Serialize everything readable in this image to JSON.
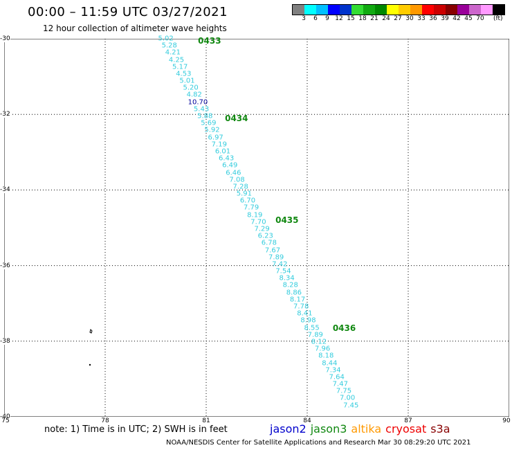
{
  "header": {
    "title": "00:00 – 11:59 UTC 03/27/2021",
    "subtitle": "12 hour collection of altimeter wave heights"
  },
  "legend": {
    "colors": [
      "#808080",
      "#00ffff",
      "#00bfff",
      "#0000ff",
      "#0033cc",
      "#33dd33",
      "#11aa11",
      "#008800",
      "#ffff00",
      "#ffcc00",
      "#ff9900",
      "#ff0000",
      "#cc0000",
      "#880000",
      "#990099",
      "#cc66cc",
      "#ff99ff",
      "#000000"
    ],
    "labels": [
      "3",
      "6",
      "9",
      "12",
      "15",
      "18",
      "21",
      "24",
      "27",
      "30",
      "33",
      "36",
      "39",
      "42",
      "45",
      "70"
    ],
    "unit": "(ft)"
  },
  "axes": {
    "y_ticks": [
      "-30",
      "-32",
      "-34",
      "-36",
      "-38",
      "-40"
    ],
    "x_ticks": [
      "75",
      "78",
      "81",
      "84",
      "87",
      "90"
    ],
    "lat_range": [
      -40,
      -30
    ],
    "lon_range": [
      75,
      90
    ]
  },
  "track": {
    "wave_heights": [
      "5.02",
      "5.28",
      "4.21",
      "4.25",
      "5.17",
      "4.53",
      "5.01",
      "5.20",
      "4.82",
      "10.70",
      "5.43",
      "5.88",
      "5.69",
      "5.92",
      "6.97",
      "7.19",
      "6.01",
      "6.43",
      "6.49",
      "6.46",
      "7.08",
      "7.28",
      "5.91",
      "6.70",
      "7.79",
      "8.19",
      "7.70",
      "7.29",
      "6.23",
      "6.78",
      "7.67",
      "7.89",
      "7.42",
      "7.54",
      "8.34",
      "8.28",
      "8.86",
      "8.17",
      "7.78",
      "8.41",
      "8.98",
      "8.55",
      "7.89",
      "8.12",
      "7.96",
      "8.18",
      "8.44",
      "7.34",
      "7.64",
      "7.47",
      "7.75",
      "7.00",
      "7.45"
    ],
    "time_labels": [
      {
        "text": "0433",
        "lat": -30.05,
        "lon": 81.1
      },
      {
        "text": "0434",
        "lat": -32.1,
        "lon": 81.9
      },
      {
        "text": "0435",
        "lat": -34.8,
        "lon": 83.4
      },
      {
        "text": "0436",
        "lat": -37.65,
        "lon": 85.1
      }
    ],
    "start": {
      "lat": -30.0,
      "lon": 79.8
    },
    "end": {
      "lat": -39.7,
      "lon": 85.3
    }
  },
  "footer": {
    "note": "note: 1) Time is in UTC; 2) SWH is in feet",
    "satellites": [
      {
        "name": "jason2",
        "color": "#0000cc"
      },
      {
        "name": "jason3",
        "color": "#118811"
      },
      {
        "name": "altika",
        "color": "#ff9900"
      },
      {
        "name": "cryosat",
        "color": "#ee0000"
      },
      {
        "name": "s3a",
        "color": "#880000"
      }
    ],
    "credit": "NOAA/NESDIS Center for Satellite Applications and Research    Mar 30 08:29:20 UTC 2021"
  }
}
